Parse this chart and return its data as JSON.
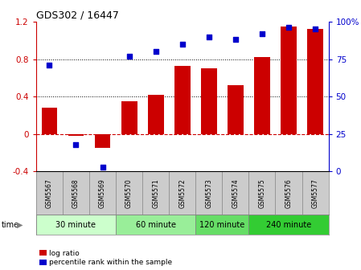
{
  "title": "GDS302 / 16447",
  "samples": [
    "GSM5567",
    "GSM5568",
    "GSM5569",
    "GSM5570",
    "GSM5571",
    "GSM5572",
    "GSM5573",
    "GSM5574",
    "GSM5575",
    "GSM5576",
    "GSM5577"
  ],
  "log_ratio": [
    0.28,
    -0.02,
    -0.15,
    0.35,
    0.42,
    0.73,
    0.7,
    0.52,
    0.82,
    1.15,
    1.12
  ],
  "percentile": [
    71,
    18,
    3,
    77,
    80,
    85,
    90,
    88,
    92,
    96,
    95
  ],
  "bar_color": "#cc0000",
  "dot_color": "#0000cc",
  "ylim_left": [
    -0.4,
    1.2
  ],
  "ylim_right": [
    0,
    100
  ],
  "yticks_left": [
    -0.4,
    0.0,
    0.4,
    0.8,
    1.2
  ],
  "yticks_right": [
    0,
    25,
    50,
    75,
    100
  ],
  "ytick_labels_right": [
    "0",
    "25",
    "50",
    "75",
    "100%"
  ],
  "dotted_lines": [
    0.4,
    0.8
  ],
  "zero_line_color": "#cc0000",
  "groups": [
    {
      "label": "30 minute",
      "start": 0,
      "end": 3,
      "color": "#ccffcc"
    },
    {
      "label": "60 minute",
      "start": 3,
      "end": 6,
      "color": "#99ee99"
    },
    {
      "label": "120 minute",
      "start": 6,
      "end": 8,
      "color": "#66dd66"
    },
    {
      "label": "240 minute",
      "start": 8,
      "end": 11,
      "color": "#33cc33"
    }
  ],
  "legend_log_ratio": "log ratio",
  "legend_percentile": "percentile rank within the sample",
  "time_label": "time",
  "axis_label_bg": "#cccccc",
  "bar_width": 0.6,
  "title_fontsize": 9,
  "tick_fontsize": 7.5,
  "sample_fontsize": 5.5,
  "group_fontsize": 7,
  "legend_fontsize": 6.5
}
